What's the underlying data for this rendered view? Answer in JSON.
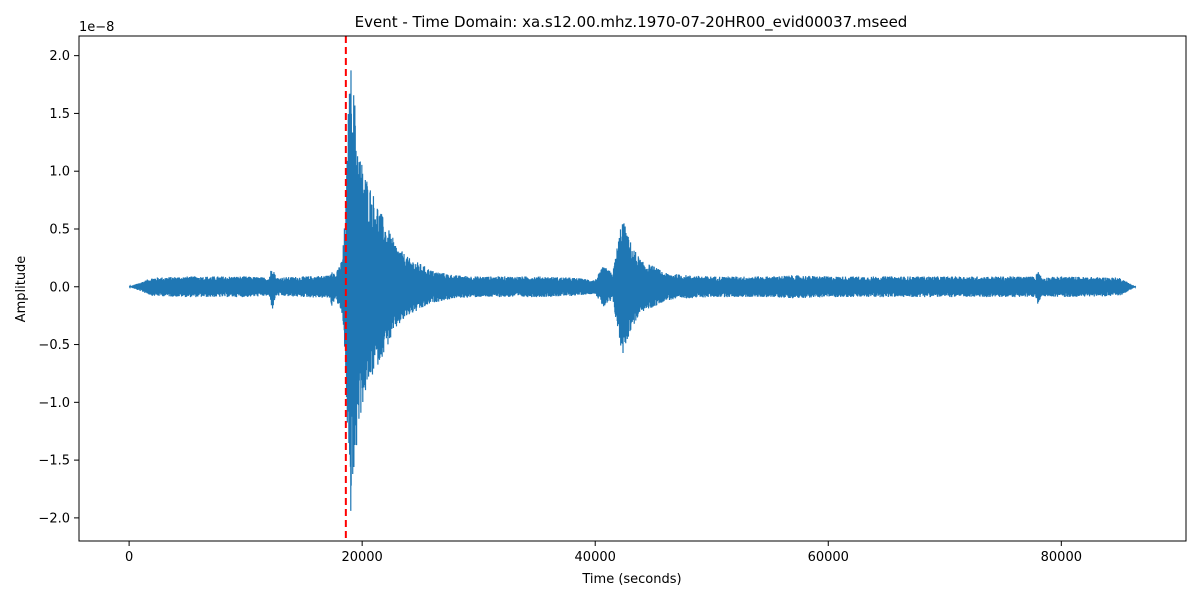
{
  "chart_data": {
    "type": "line",
    "title": "Event - Time Domain: xa.s12.00.mhz.1970-07-20HR00_evid00037.mseed",
    "xlabel": "Time (seconds)",
    "ylabel": "Amplitude",
    "y_offset_label": "1e−8",
    "xlim": [
      -4300,
      90700
    ],
    "ylim": [
      -2.2,
      2.17
    ],
    "y_scale_note": "values in units of 1e-8",
    "x_ticks": [
      0,
      20000,
      40000,
      60000,
      80000
    ],
    "x_tick_labels": [
      "0",
      "20000",
      "40000",
      "60000",
      "80000"
    ],
    "y_ticks": [
      -2.0,
      -1.5,
      -1.0,
      -0.5,
      0.0,
      0.5,
      1.0,
      1.5,
      2.0
    ],
    "y_tick_labels": [
      "−2.0",
      "−1.5",
      "−1.0",
      "−0.5",
      "0.0",
      "0.5",
      "1.0",
      "1.5",
      "2.0"
    ],
    "grid": false,
    "series": [
      {
        "color": "#1f77b4",
        "envelope": {
          "x": [
            0,
            1000,
            2000,
            5000,
            10000,
            12000,
            12300,
            12600,
            15000,
            17200,
            17400,
            17700,
            18300,
            18600,
            18800,
            19000,
            19300,
            19700,
            20200,
            21000,
            22000,
            23000,
            24000,
            25000,
            26000,
            28000,
            30000,
            35000,
            38000,
            40000,
            40700,
            41500,
            42300,
            42500,
            42800,
            43200,
            44000,
            45000,
            46000,
            48000,
            50000,
            55000,
            57000,
            60000,
            65000,
            70000,
            75000,
            77800,
            78000,
            78300,
            80000,
            85000,
            86400
          ],
          "upper": [
            0.0,
            0.04,
            0.08,
            0.09,
            0.09,
            0.08,
            0.2,
            0.08,
            0.09,
            0.1,
            0.17,
            0.1,
            0.25,
            0.7,
            1.5,
            1.95,
            1.7,
            1.2,
            1.0,
            0.8,
            0.55,
            0.35,
            0.25,
            0.2,
            0.14,
            0.1,
            0.09,
            0.09,
            0.08,
            0.06,
            0.18,
            0.12,
            0.6,
            0.55,
            0.45,
            0.35,
            0.22,
            0.18,
            0.12,
            0.1,
            0.09,
            0.09,
            0.1,
            0.09,
            0.09,
            0.09,
            0.09,
            0.09,
            0.16,
            0.08,
            0.09,
            0.08,
            0.0
          ],
          "lower": [
            0.0,
            -0.04,
            -0.08,
            -0.09,
            -0.09,
            -0.08,
            -0.2,
            -0.08,
            -0.09,
            -0.1,
            -0.17,
            -0.1,
            -0.25,
            -0.75,
            -1.6,
            -2.0,
            -1.7,
            -1.2,
            -0.95,
            -0.75,
            -0.55,
            -0.35,
            -0.25,
            -0.2,
            -0.14,
            -0.1,
            -0.09,
            -0.09,
            -0.08,
            -0.06,
            -0.18,
            -0.12,
            -0.6,
            -0.55,
            -0.45,
            -0.35,
            -0.22,
            -0.18,
            -0.12,
            -0.1,
            -0.09,
            -0.09,
            -0.1,
            -0.09,
            -0.09,
            -0.09,
            -0.09,
            -0.09,
            -0.16,
            -0.08,
            -0.09,
            -0.08,
            0.0
          ]
        }
      }
    ],
    "annotations": [
      {
        "type": "vline",
        "x": 18600,
        "color": "#ff0000",
        "style": "dashed"
      }
    ]
  }
}
